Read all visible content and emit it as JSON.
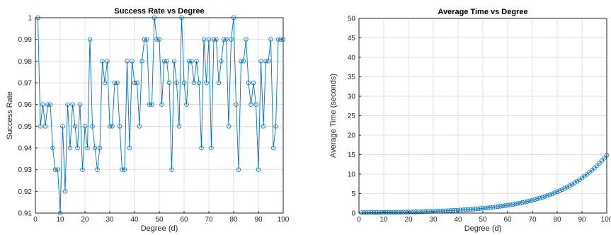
{
  "colors": {
    "line": "#0072BD",
    "axis": "#262626",
    "grid": "#e0e0e0",
    "background": "#ffffff"
  },
  "chart_data": [
    {
      "type": "line",
      "title": "Success Rate vs Degree",
      "xlabel": "Degree (d)",
      "ylabel": "Success Rate",
      "xlim": [
        0,
        100
      ],
      "ylim": [
        0.91,
        1.0
      ],
      "grid": true,
      "marker": "circle",
      "xticks": [
        "0",
        "10",
        "20",
        "30",
        "40",
        "50",
        "60",
        "70",
        "80",
        "90",
        "100"
      ],
      "yticks": [
        "0.91",
        "0.92",
        "0.93",
        "0.94",
        "0.95",
        "0.96",
        "0.97",
        "0.98",
        "0.99",
        "1"
      ],
      "x": [
        1,
        2,
        3,
        4,
        5,
        6,
        7,
        8,
        9,
        10,
        11,
        12,
        13,
        14,
        15,
        16,
        17,
        18,
        19,
        20,
        21,
        22,
        23,
        24,
        25,
        26,
        27,
        28,
        29,
        30,
        31,
        32,
        33,
        34,
        35,
        36,
        37,
        38,
        39,
        40,
        41,
        42,
        43,
        44,
        45,
        46,
        47,
        48,
        49,
        50,
        51,
        52,
        53,
        54,
        55,
        56,
        57,
        58,
        59,
        60,
        61,
        62,
        63,
        64,
        65,
        66,
        67,
        68,
        69,
        70,
        71,
        72,
        73,
        74,
        75,
        76,
        77,
        78,
        79,
        80,
        81,
        82,
        83,
        84,
        85,
        86,
        87,
        88,
        89,
        90,
        91,
        92,
        93,
        94,
        95,
        96,
        97,
        98,
        99,
        100
      ],
      "series": [
        {
          "values": [
            1,
            0.95,
            0.96,
            0.95,
            0.96,
            0.96,
            0.94,
            0.93,
            0.93,
            0.91,
            0.95,
            0.92,
            0.96,
            0.94,
            0.96,
            0.95,
            0.94,
            0.96,
            0.93,
            0.95,
            0.94,
            0.99,
            0.95,
            0.94,
            0.93,
            0.94,
            0.98,
            0.97,
            0.98,
            0.95,
            0.95,
            0.97,
            0.97,
            0.95,
            0.93,
            0.93,
            0.98,
            0.94,
            0.98,
            0.97,
            0.97,
            0.95,
            0.98,
            0.99,
            0.99,
            0.96,
            0.96,
            1,
            0.99,
            0.99,
            0.96,
            0.98,
            0.98,
            0.97,
            0.93,
            0.98,
            0.97,
            0.95,
            1,
            0.97,
            0.96,
            0.98,
            0.98,
            0.97,
            0.98,
            0.97,
            0.94,
            0.99,
            0.97,
            0.99,
            0.94,
            0.99,
            0.99,
            0.97,
            0.98,
            0.99,
            0.99,
            0.95,
            0.99,
            1,
            0.96,
            0.93,
            0.98,
            0.98,
            0.99,
            0.97,
            0.96,
            0.97,
            0.96,
            0.93,
            0.98,
            0.95,
            0.98,
            0.98,
            0.99,
            0.94,
            0.95,
            0.99,
            0.99,
            0.99
          ]
        }
      ]
    },
    {
      "type": "line",
      "title": "Average Time vs Degree",
      "xlabel": "Degree (d)",
      "ylabel": "Average Time (seconds)",
      "xlim": [
        0,
        100
      ],
      "ylim": [
        0,
        50
      ],
      "grid": true,
      "marker": "circle",
      "xticks": [
        "0",
        "10",
        "20",
        "30",
        "40",
        "50",
        "60",
        "70",
        "80",
        "90",
        "100"
      ],
      "yticks": [
        "0",
        "5",
        "10",
        "15",
        "20",
        "25",
        "30",
        "35",
        "40",
        "45",
        "50"
      ],
      "x": [
        1,
        2,
        3,
        4,
        5,
        6,
        7,
        8,
        9,
        10,
        11,
        12,
        13,
        14,
        15,
        16,
        17,
        18,
        19,
        20,
        21,
        22,
        23,
        24,
        25,
        26,
        27,
        28,
        29,
        30,
        31,
        32,
        33,
        34,
        35,
        36,
        37,
        38,
        39,
        40,
        41,
        42,
        43,
        44,
        45,
        46,
        47,
        48,
        49,
        50,
        51,
        52,
        53,
        54,
        55,
        56,
        57,
        58,
        59,
        60,
        61,
        62,
        63,
        64,
        65,
        66,
        67,
        68,
        69,
        70,
        71,
        72,
        73,
        74,
        75,
        76,
        77,
        78,
        79,
        80,
        81,
        82,
        83,
        84,
        85,
        86,
        87,
        88,
        89,
        90,
        91,
        92,
        93,
        94,
        95,
        96,
        97,
        98,
        99,
        100
      ],
      "series": [
        {
          "values": [
            0.11,
            0.12,
            0.12,
            0.13,
            0.13,
            0.14,
            0.15,
            0.15,
            0.16,
            0.17,
            0.18,
            0.18,
            0.19,
            0.2,
            0.21,
            0.22,
            0.23,
            0.25,
            0.26,
            0.27,
            0.29,
            0.3,
            0.32,
            0.33,
            0.35,
            0.37,
            0.39,
            0.41,
            0.43,
            0.45,
            0.47,
            0.5,
            0.52,
            0.55,
            0.58,
            0.61,
            0.64,
            0.67,
            0.71,
            0.74,
            0.78,
            0.82,
            0.86,
            0.9,
            0.95,
            1.0,
            1.05,
            1.1,
            1.16,
            1.22,
            1.28,
            1.35,
            1.42,
            1.49,
            1.56,
            1.64,
            1.73,
            1.82,
            1.91,
            2.01,
            2.11,
            2.22,
            2.33,
            2.45,
            2.58,
            2.71,
            2.85,
            3.0,
            3.15,
            3.31,
            3.48,
            3.66,
            3.85,
            4.04,
            4.25,
            4.47,
            4.7,
            4.94,
            5.2,
            5.46,
            5.74,
            6.04,
            6.35,
            6.67,
            7.01,
            7.37,
            7.75,
            8.15,
            8.56,
            9.0,
            9.46,
            9.95,
            10.46,
            11.0,
            11.56,
            12.15,
            12.78,
            13.43,
            14.12,
            14.85
          ]
        }
      ]
    }
  ]
}
